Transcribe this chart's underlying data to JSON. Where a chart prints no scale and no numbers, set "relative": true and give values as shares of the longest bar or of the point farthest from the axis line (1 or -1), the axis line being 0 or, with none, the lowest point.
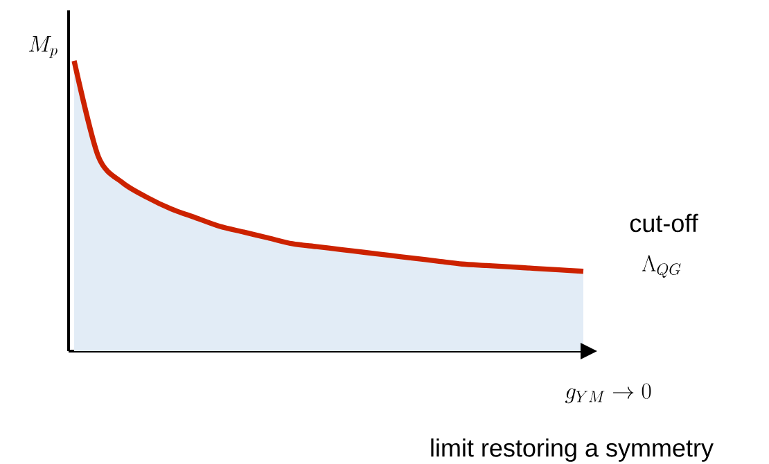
{
  "chart_data": {
    "type": "area",
    "relative": true,
    "ylabel": "M_p",
    "xlabel": "g_{YM} \\to 0",
    "annotations": [
      "cut-off",
      "\\Lambda_{QG}",
      "limit restoring a symmetry"
    ],
    "categories": [
      null,
      null,
      null,
      null,
      null,
      null,
      null,
      null,
      null,
      null,
      null,
      null,
      null,
      null,
      null,
      null,
      null,
      null,
      null,
      null,
      null,
      null
    ],
    "series": [
      {
        "color": "#cc2200",
        "values": [
          1.0,
          0.67,
          0.58,
          0.53,
          0.49,
          0.46,
          0.43,
          0.41,
          0.39,
          0.37,
          0.36,
          0.35,
          0.34,
          0.33,
          0.32,
          0.31,
          0.3,
          0.295,
          0.29,
          0.285,
          0.28,
          0.275
        ]
      }
    ]
  }
}
